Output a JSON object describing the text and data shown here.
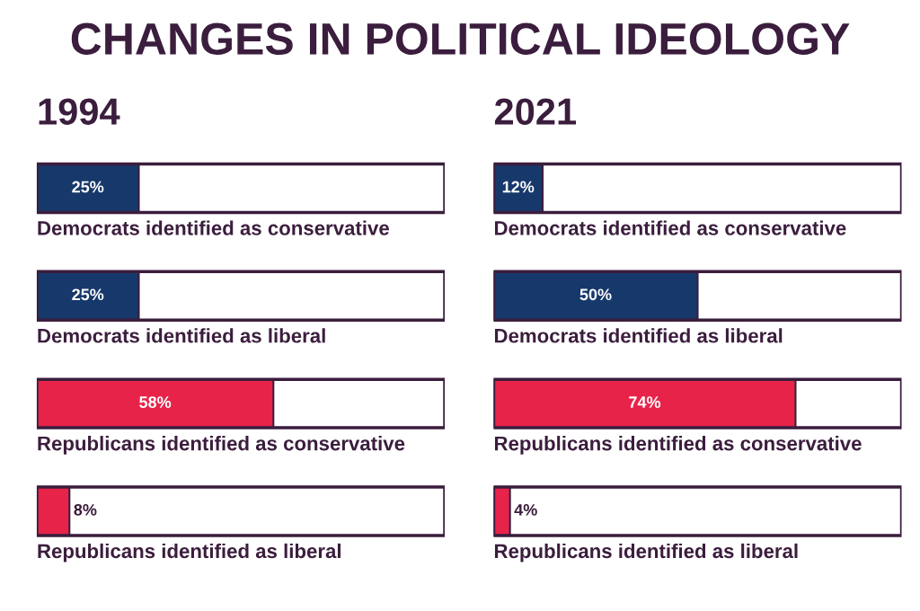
{
  "chart_data": [
    {
      "type": "bar",
      "orientation": "horizontal",
      "title": "1994",
      "annotations": [
        "CHANGES IN POLITICAL IDEOLOGY"
      ],
      "categories": [
        "Democrats identified as conservative",
        "Democrats identified as liberal",
        "Republicans identified as conservative",
        "Republicans identified as liberal"
      ],
      "values": [
        25,
        25,
        58,
        8
      ],
      "colors": [
        "#17386b",
        "#17386b",
        "#e8234a",
        "#e8234a"
      ],
      "value_labels": [
        "25%",
        "25%",
        "58%",
        "8%"
      ],
      "xlim": [
        0,
        100
      ],
      "tick_labels": false
    },
    {
      "type": "bar",
      "orientation": "horizontal",
      "title": "2021",
      "categories": [
        "Democrats identified as conservative",
        "Democrats identified as liberal",
        "Republicans identified as conservative",
        "Republicans identified as liberal"
      ],
      "values": [
        12,
        50,
        74,
        4
      ],
      "colors": [
        "#17386b",
        "#17386b",
        "#e8234a",
        "#e8234a"
      ],
      "value_labels": [
        "12%",
        "50%",
        "74%",
        "4%"
      ],
      "xlim": [
        0,
        100
      ],
      "tick_labels": false
    }
  ]
}
